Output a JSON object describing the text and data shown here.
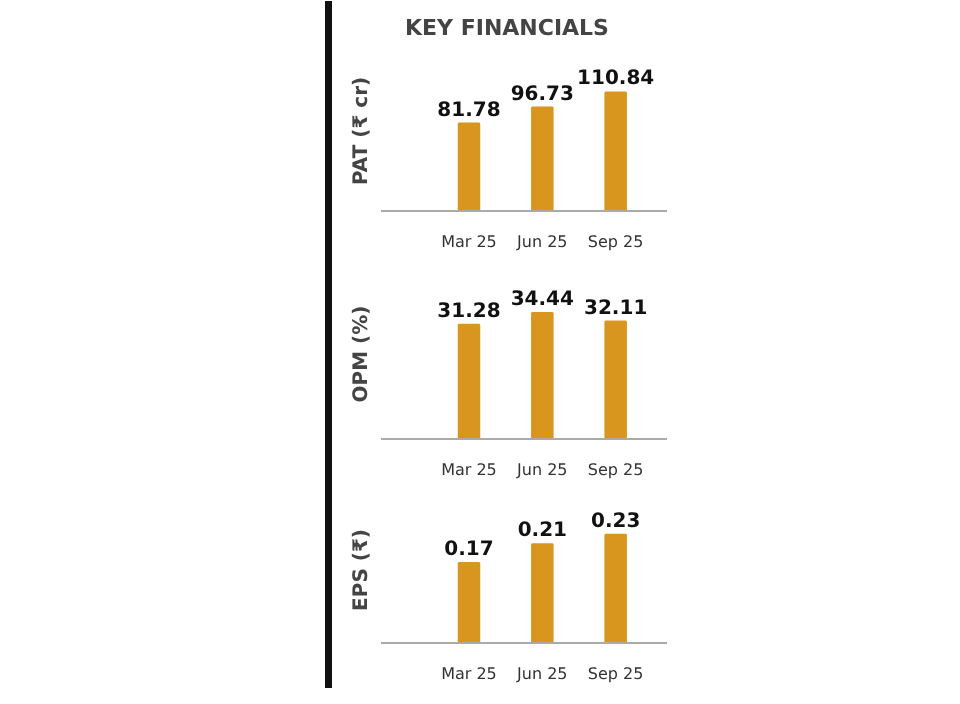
{
  "chart_data": [
    {
      "type": "bar",
      "title": "KEY FINANCIALS",
      "ylabel": "PAT (₹ cr)",
      "categories": [
        "Mar 25",
        "Jun 25",
        "Sep 25"
      ],
      "values": [
        81.78,
        96.73,
        110.84
      ],
      "color": "#d9961e",
      "data_labels": true,
      "grid": false
    },
    {
      "type": "bar",
      "ylabel": "OPM (%)",
      "categories": [
        "Mar 25",
        "Jun 25",
        "Sep 25"
      ],
      "values": [
        31.28,
        34.44,
        32.11
      ],
      "color": "#d9961e",
      "data_labels": true,
      "grid": false
    },
    {
      "type": "bar",
      "ylabel": "EPS (₹)",
      "categories": [
        "Mar 25",
        "Jun 25",
        "Sep 25"
      ],
      "values": [
        0.17,
        0.21,
        0.23
      ],
      "color": "#d9961e",
      "data_labels": true,
      "grid": false
    }
  ]
}
